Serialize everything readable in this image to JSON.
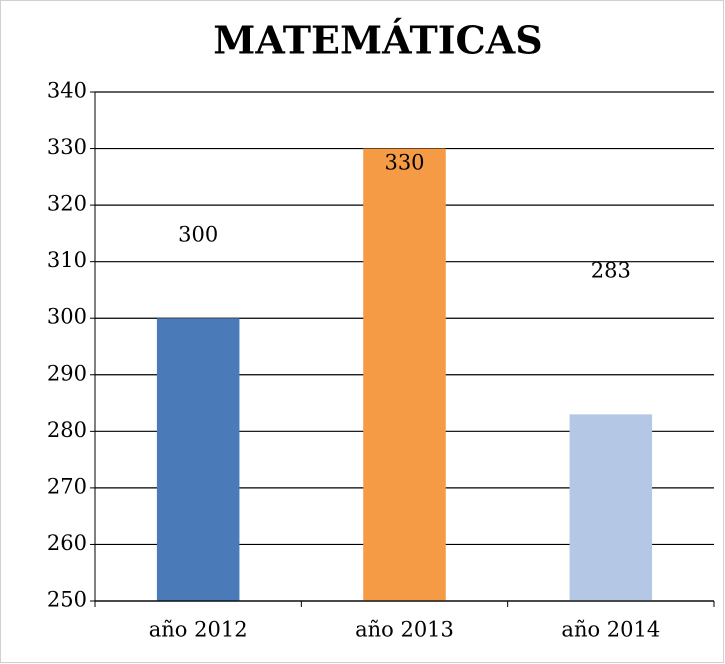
{
  "chart_data": {
    "type": "bar",
    "title": "MATEMÁTICAS",
    "categories": [
      "año 2012",
      "año 2013",
      "año 2014"
    ],
    "values": [
      300,
      330,
      283
    ],
    "colors": [
      "#4a7ab8",
      "#f59a45",
      "#b4c7e4"
    ],
    "ylim": [
      250,
      340
    ],
    "yticks": [
      250,
      260,
      270,
      280,
      290,
      300,
      310,
      320,
      330,
      340
    ],
    "grid": true
  }
}
